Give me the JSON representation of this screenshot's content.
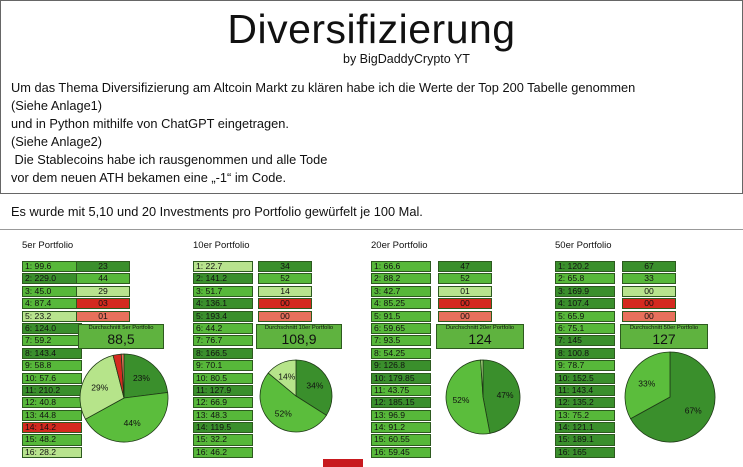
{
  "header": {
    "title": "Diversifizierung",
    "byline": "by BigDaddyCrypto YT",
    "intro_lines": [
      "Um das Thema Diversifizierung am Altcoin Markt zu klären habe ich die Werte der Top 200 Tabelle genommen",
      "(Siehe Anlage1)",
      "und in Python mithilfe von ChatGPT eingetragen.",
      "(Siehe Anlage2)",
      " Die Stablecoins habe ich rausgenommen und alle Tode",
      "vor dem neuen ATH bekamen eine „-1“ im Code."
    ]
  },
  "section2": "Es wurde mit 5,10 und 20 Investments pro Portfolio gewürfelt je 100 Mal.",
  "colors": {
    "dark_green": "#3a8f2c",
    "mid_green": "#57b83a",
    "light_green": "#b8e38e",
    "red": "#d42a1f",
    "light_red": "#e8705c",
    "pie_dark": "#3a8f2c",
    "pie_mid": "#5bbd3c",
    "pie_light": "#b6e48a",
    "pie_red": "#d42a1f"
  },
  "portfolios": [
    {
      "title": "5er Portfolio",
      "values": [
        {
          "t": "1: 99.6",
          "c": "mid"
        },
        {
          "t": "2: 229.0",
          "c": "dark"
        },
        {
          "t": "3: 45.0",
          "c": "mid"
        },
        {
          "t": "4: 87.4",
          "c": "mid"
        },
        {
          "t": "5: 23.2",
          "c": "light"
        },
        {
          "t": "6: 124.0",
          "c": "dark"
        },
        {
          "t": "7: 59.2",
          "c": "mid"
        },
        {
          "t": "8: 143.4",
          "c": "dark"
        },
        {
          "t": "9: 58.8",
          "c": "mid"
        },
        {
          "t": "10: 57.6",
          "c": "mid"
        },
        {
          "t": "11: 210.2",
          "c": "dark"
        },
        {
          "t": "12: 40.8",
          "c": "mid"
        },
        {
          "t": "13: 44.8",
          "c": "mid"
        },
        {
          "t": "14: 14.2",
          "c": "red"
        },
        {
          "t": "15: 48.2",
          "c": "mid"
        },
        {
          "t": "16: 28.2",
          "c": "light"
        }
      ],
      "overview": [
        {
          "t": "23",
          "c": "dark"
        },
        {
          "t": "44",
          "c": "mid"
        },
        {
          "t": "29",
          "c": "light"
        },
        {
          "t": "03",
          "c": "red"
        },
        {
          "t": "01",
          "c": "lightred"
        }
      ],
      "avg_label": "Durchschnitt 5er Portfolio",
      "avg_value": "88,5",
      "pie": [
        23,
        44,
        29,
        3,
        1
      ],
      "pie_labels": [
        {
          "t": "23%",
          "i": 0
        },
        {
          "t": "44%",
          "i": 1
        },
        {
          "t": "29%",
          "i": 2
        }
      ]
    },
    {
      "title": "10er Portfolio",
      "values": [
        {
          "t": "1: 22.7",
          "c": "light"
        },
        {
          "t": "2: 141.2",
          "c": "dark"
        },
        {
          "t": "3: 51.7",
          "c": "mid"
        },
        {
          "t": "4: 136.1",
          "c": "dark"
        },
        {
          "t": "5: 193.4",
          "c": "dark"
        },
        {
          "t": "6: 44.2",
          "c": "mid"
        },
        {
          "t": "7: 76.7",
          "c": "mid"
        },
        {
          "t": "8: 166.5",
          "c": "dark"
        },
        {
          "t": "9: 70.1",
          "c": "mid"
        },
        {
          "t": "10: 80.5",
          "c": "mid"
        },
        {
          "t": "11: 127.9",
          "c": "dark"
        },
        {
          "t": "12: 66.9",
          "c": "mid"
        },
        {
          "t": "13: 48.3",
          "c": "mid"
        },
        {
          "t": "14: 119.5",
          "c": "dark"
        },
        {
          "t": "15: 32.2",
          "c": "mid"
        },
        {
          "t": "16: 46.2",
          "c": "mid"
        }
      ],
      "overview": [
        {
          "t": "34",
          "c": "dark"
        },
        {
          "t": "52",
          "c": "mid"
        },
        {
          "t": "14",
          "c": "light"
        },
        {
          "t": "00",
          "c": "red"
        },
        {
          "t": "00",
          "c": "lightred"
        }
      ],
      "avg_label": "Durchschnitt 10er Portfolio",
      "avg_value": "108,9",
      "pie": [
        34,
        52,
        14,
        0,
        0
      ],
      "pie_labels": [
        {
          "t": "34%",
          "i": 0
        },
        {
          "t": "52%",
          "i": 1
        },
        {
          "t": "14%",
          "i": 2
        }
      ]
    },
    {
      "title": "20er Portfolio",
      "values": [
        {
          "t": "1: 66.6",
          "c": "mid"
        },
        {
          "t": "2: 88.2",
          "c": "mid"
        },
        {
          "t": "3: 42.7",
          "c": "mid"
        },
        {
          "t": "4: 85.25",
          "c": "mid"
        },
        {
          "t": "5: 91.5",
          "c": "mid"
        },
        {
          "t": "6: 59.65",
          "c": "mid"
        },
        {
          "t": "7: 93.5",
          "c": "mid"
        },
        {
          "t": "8: 54.25",
          "c": "mid"
        },
        {
          "t": "9: 126.8",
          "c": "dark"
        },
        {
          "t": "10: 179.85",
          "c": "dark"
        },
        {
          "t": "11: 43.75",
          "c": "mid"
        },
        {
          "t": "12: 185.15",
          "c": "dark"
        },
        {
          "t": "13: 96.9",
          "c": "mid"
        },
        {
          "t": "14: 91.2",
          "c": "mid"
        },
        {
          "t": "15: 60.55",
          "c": "mid"
        },
        {
          "t": "16: 59.45",
          "c": "mid"
        }
      ],
      "overview": [
        {
          "t": "47",
          "c": "dark"
        },
        {
          "t": "52",
          "c": "mid"
        },
        {
          "t": "01",
          "c": "light"
        },
        {
          "t": "00",
          "c": "red"
        },
        {
          "t": "00",
          "c": "lightred"
        }
      ],
      "avg_label": "Durchschnitt 20er Portfolio",
      "avg_value": "124",
      "pie": [
        47,
        52,
        1,
        0,
        0
      ],
      "pie_labels": [
        {
          "t": "47%",
          "i": 0
        },
        {
          "t": "52%",
          "i": 1
        }
      ]
    },
    {
      "title": "50er Portfolio",
      "values": [
        {
          "t": "1: 120.2",
          "c": "dark"
        },
        {
          "t": "2: 65.8",
          "c": "mid"
        },
        {
          "t": "3: 169.9",
          "c": "dark"
        },
        {
          "t": "4: 107.4",
          "c": "dark"
        },
        {
          "t": "5: 65.9",
          "c": "mid"
        },
        {
          "t": "6: 75.1",
          "c": "mid"
        },
        {
          "t": "7: 145",
          "c": "dark"
        },
        {
          "t": "8: 100.8",
          "c": "dark"
        },
        {
          "t": "9: 78.7",
          "c": "mid"
        },
        {
          "t": "10: 152.5",
          "c": "dark"
        },
        {
          "t": "11: 143.4",
          "c": "dark"
        },
        {
          "t": "12: 135.2",
          "c": "dark"
        },
        {
          "t": "13: 75.2",
          "c": "mid"
        },
        {
          "t": "14: 121.1",
          "c": "dark"
        },
        {
          "t": "15: 189.1",
          "c": "dark"
        },
        {
          "t": "16: 165",
          "c": "dark"
        }
      ],
      "overview": [
        {
          "t": "67",
          "c": "dark"
        },
        {
          "t": "33",
          "c": "mid"
        },
        {
          "t": "00",
          "c": "light"
        },
        {
          "t": "00",
          "c": "red"
        },
        {
          "t": "00",
          "c": "lightred"
        }
      ],
      "avg_label": "Durchschnitt 50er Portfolio",
      "avg_value": "127",
      "pie": [
        67,
        33,
        0,
        0,
        0
      ],
      "pie_labels": [
        {
          "t": "67%",
          "i": 0
        },
        {
          "t": "33%",
          "i": 1
        }
      ]
    }
  ]
}
